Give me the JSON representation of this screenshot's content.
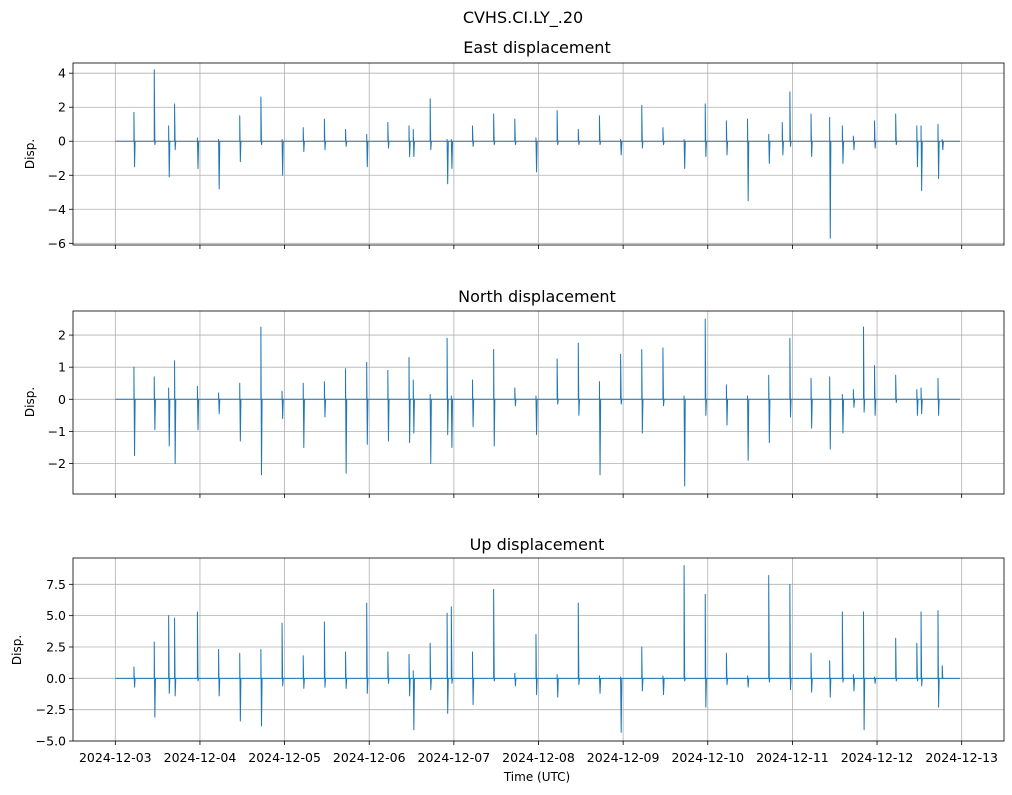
{
  "figure": {
    "suptitle": "CVHS.CI.LY_.20",
    "xlabel": "Time (UTC)",
    "line_color": "#1f77b4",
    "grid_color": "#b0b0b0"
  },
  "chart_data": [
    {
      "type": "line",
      "title": "East displacement",
      "ylabel": "Disp.",
      "xlim": [
        -0.5,
        10.5
      ],
      "ylim": [
        -6.1,
        4.6
      ],
      "yticks": [
        4,
        2,
        0,
        -2,
        -4,
        -6
      ],
      "ytick_labels": [
        "4",
        "2",
        "0",
        "−2",
        "−4",
        "−6"
      ],
      "xticks": [
        0,
        1,
        2,
        3,
        4,
        5,
        6,
        7,
        8,
        9,
        10
      ],
      "x_unit": "days since 2024-12-03 00:00 UTC",
      "spikes": [
        [
          0.22,
          1.7,
          -1.5
        ],
        [
          0.46,
          4.2,
          -0.2
        ],
        [
          0.63,
          0.9,
          -2.1
        ],
        [
          0.7,
          2.2,
          -0.5
        ],
        [
          0.97,
          0.2,
          -1.6
        ],
        [
          1.22,
          0.1,
          -2.8
        ],
        [
          1.47,
          1.5,
          -1.2
        ],
        [
          1.72,
          2.6,
          -0.2
        ],
        [
          1.97,
          0.1,
          -2.0
        ],
        [
          2.22,
          0.8,
          -0.6
        ],
        [
          2.47,
          1.3,
          -0.5
        ],
        [
          2.72,
          0.7,
          -0.3
        ],
        [
          2.97,
          0.4,
          -1.5
        ],
        [
          3.22,
          1.1,
          -0.4
        ],
        [
          3.47,
          0.9,
          -0.9
        ],
        [
          3.52,
          0.7,
          -0.9
        ],
        [
          3.72,
          2.5,
          -0.5
        ],
        [
          3.92,
          0.1,
          -2.5
        ],
        [
          3.97,
          0.1,
          -1.6
        ],
        [
          4.22,
          0.9,
          -0.3
        ],
        [
          4.47,
          1.6,
          -0.2
        ],
        [
          4.72,
          1.3,
          -0.2
        ],
        [
          4.97,
          0.2,
          -1.8
        ],
        [
          5.22,
          1.8,
          -0.2
        ],
        [
          5.47,
          0.7,
          -0.2
        ],
        [
          5.72,
          1.5,
          -0.2
        ],
        [
          5.97,
          0.1,
          -0.8
        ],
        [
          6.22,
          2.1,
          -0.4
        ],
        [
          6.47,
          0.8,
          -0.2
        ],
        [
          6.72,
          0.1,
          -1.6
        ],
        [
          6.97,
          2.2,
          -0.9
        ],
        [
          7.22,
          1.2,
          -0.8
        ],
        [
          7.47,
          1.3,
          -3.5
        ],
        [
          7.72,
          0.4,
          -1.3
        ],
        [
          7.88,
          1.1,
          -0.8
        ],
        [
          7.97,
          2.9,
          -0.3
        ],
        [
          8.22,
          1.6,
          -0.9
        ],
        [
          8.44,
          1.4,
          -5.7
        ],
        [
          8.59,
          0.9,
          -1.3
        ],
        [
          8.72,
          0.3,
          -0.5
        ],
        [
          8.97,
          1.2,
          -0.4
        ],
        [
          9.22,
          1.6,
          -0.2
        ],
        [
          9.47,
          0.9,
          -1.5
        ],
        [
          9.52,
          0.9,
          -2.9
        ],
        [
          9.72,
          1.0,
          -2.2
        ],
        [
          9.77,
          0.1,
          -0.5
        ]
      ]
    },
    {
      "type": "line",
      "title": "North displacement",
      "ylabel": "Disp.",
      "xlim": [
        -0.5,
        10.5
      ],
      "ylim": [
        -2.95,
        2.75
      ],
      "yticks": [
        2,
        1,
        0,
        -1,
        -2
      ],
      "ytick_labels": [
        "2",
        "1",
        "0",
        "−1",
        "−2"
      ],
      "xticks": [
        0,
        1,
        2,
        3,
        4,
        5,
        6,
        7,
        8,
        9,
        10
      ],
      "x_unit": "days since 2024-12-03 00:00 UTC",
      "spikes": [
        [
          0.22,
          1.0,
          -1.75
        ],
        [
          0.46,
          0.7,
          -0.95
        ],
        [
          0.63,
          0.35,
          -1.45
        ],
        [
          0.7,
          1.2,
          -2.0
        ],
        [
          0.97,
          0.4,
          -0.95
        ],
        [
          1.22,
          0.2,
          -0.45
        ],
        [
          1.47,
          0.5,
          -1.3
        ],
        [
          1.72,
          2.25,
          -2.35
        ],
        [
          1.97,
          0.25,
          -0.6
        ],
        [
          2.22,
          0.5,
          -1.5
        ],
        [
          2.47,
          0.55,
          -0.55
        ],
        [
          2.72,
          0.95,
          -2.3
        ],
        [
          2.97,
          1.15,
          -1.4
        ],
        [
          3.22,
          0.9,
          -1.3
        ],
        [
          3.47,
          1.3,
          -1.35
        ],
        [
          3.52,
          0.6,
          -1.05
        ],
        [
          3.72,
          0.15,
          -2.0
        ],
        [
          3.92,
          1.9,
          -1.1
        ],
        [
          3.97,
          0.1,
          -1.5
        ],
        [
          4.22,
          0.6,
          -0.85
        ],
        [
          4.47,
          1.55,
          -1.45
        ],
        [
          4.72,
          0.35,
          -0.2
        ],
        [
          4.97,
          0.1,
          -1.1
        ],
        [
          5.22,
          1.25,
          -0.15
        ],
        [
          5.47,
          1.75,
          -0.5
        ],
        [
          5.72,
          0.55,
          -2.35
        ],
        [
          5.97,
          1.4,
          -0.15
        ],
        [
          6.22,
          1.55,
          -1.05
        ],
        [
          6.47,
          1.6,
          -0.2
        ],
        [
          6.72,
          0.1,
          -2.7
        ],
        [
          6.97,
          2.5,
          -0.5
        ],
        [
          7.22,
          0.45,
          -0.8
        ],
        [
          7.47,
          0.1,
          -1.9
        ],
        [
          7.72,
          0.75,
          -1.35
        ],
        [
          7.97,
          1.9,
          -0.55
        ],
        [
          8.22,
          0.65,
          -0.9
        ],
        [
          8.44,
          0.7,
          -1.55
        ],
        [
          8.59,
          0.15,
          -1.05
        ],
        [
          8.72,
          0.3,
          -0.25
        ],
        [
          8.84,
          2.25,
          -0.4
        ],
        [
          8.97,
          1.05,
          -0.5
        ],
        [
          9.22,
          0.75,
          -0.1
        ],
        [
          9.47,
          0.3,
          -0.5
        ],
        [
          9.52,
          0.35,
          -0.45
        ],
        [
          9.72,
          0.65,
          -0.5
        ]
      ]
    },
    {
      "type": "line",
      "title": "Up displacement",
      "ylabel": "Disp.",
      "xlim": [
        -0.5,
        10.5
      ],
      "ylim": [
        -5.0,
        9.6
      ],
      "yticks": [
        7.5,
        5.0,
        2.5,
        0.0,
        -2.5,
        -5.0
      ],
      "ytick_labels": [
        "7.5",
        "5.0",
        "2.5",
        "0.0",
        "−2.5",
        "−5.0"
      ],
      "xticks": [
        0,
        1,
        2,
        3,
        4,
        5,
        6,
        7,
        8,
        9,
        10
      ],
      "xtick_labels": [
        "2024-12-03",
        "2024-12-04",
        "2024-12-05",
        "2024-12-06",
        "2024-12-07",
        "2024-12-08",
        "2024-12-09",
        "2024-12-10",
        "2024-12-11",
        "2024-12-12",
        "2024-12-13"
      ],
      "x_unit": "days since 2024-12-03 00:00 UTC",
      "spikes": [
        [
          0.22,
          0.9,
          -0.7
        ],
        [
          0.46,
          2.9,
          -3.1
        ],
        [
          0.63,
          5.0,
          -1.2
        ],
        [
          0.7,
          4.8,
          -1.4
        ],
        [
          0.97,
          5.3,
          -0.2
        ],
        [
          1.22,
          2.3,
          -1.4
        ],
        [
          1.47,
          2.0,
          -3.4
        ],
        [
          1.72,
          2.3,
          -3.8
        ],
        [
          1.97,
          4.4,
          -0.6
        ],
        [
          2.22,
          1.8,
          -0.8
        ],
        [
          2.47,
          4.5,
          -0.7
        ],
        [
          2.72,
          2.1,
          -0.8
        ],
        [
          2.97,
          6.0,
          -1.2
        ],
        [
          3.22,
          2.1,
          -0.4
        ],
        [
          3.47,
          1.9,
          -1.4
        ],
        [
          3.52,
          0.6,
          -4.1
        ],
        [
          3.72,
          2.8,
          -0.9
        ],
        [
          3.92,
          5.2,
          -2.8
        ],
        [
          3.97,
          5.7,
          -0.4
        ],
        [
          4.22,
          2.1,
          -2.1
        ],
        [
          4.47,
          7.1,
          -0.2
        ],
        [
          4.72,
          0.4,
          -0.6
        ],
        [
          4.97,
          3.5,
          -1.3
        ],
        [
          5.22,
          0.3,
          -1.5
        ],
        [
          5.47,
          6.0,
          -0.5
        ],
        [
          5.72,
          0.2,
          -1.2
        ],
        [
          5.97,
          0.1,
          -4.3
        ],
        [
          6.22,
          2.5,
          -1.0
        ],
        [
          6.47,
          0.2,
          -1.3
        ],
        [
          6.72,
          9.0,
          -0.2
        ],
        [
          6.97,
          6.7,
          -2.3
        ],
        [
          7.22,
          2.0,
          -0.5
        ],
        [
          7.47,
          0.2,
          -0.7
        ],
        [
          7.72,
          8.2,
          -0.3
        ],
        [
          7.97,
          7.5,
          -0.9
        ],
        [
          8.22,
          2.0,
          -1.1
        ],
        [
          8.44,
          1.4,
          -1.5
        ],
        [
          8.59,
          5.3,
          -0.3
        ],
        [
          8.72,
          0.3,
          -1.0
        ],
        [
          8.84,
          5.3,
          -4.1
        ],
        [
          8.97,
          0.1,
          -0.4
        ],
        [
          9.22,
          3.2,
          -0.2
        ],
        [
          9.47,
          2.8,
          -0.2
        ],
        [
          9.52,
          5.3,
          -0.6
        ],
        [
          9.72,
          5.4,
          -2.3
        ],
        [
          9.77,
          1.0,
          0.0
        ]
      ]
    }
  ]
}
